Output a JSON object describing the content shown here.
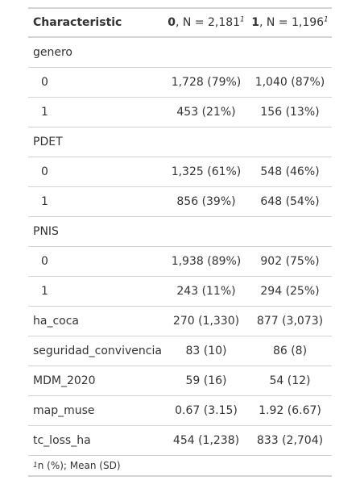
{
  "table": {
    "header": {
      "characteristic": "Characteristic",
      "col1_bold": "0",
      "col1_rest": ", N = 2,181",
      "col1_sup": "1",
      "col2_bold": "1",
      "col2_rest": ", N = 1,196",
      "col2_sup": "1"
    },
    "rows": [
      {
        "label": "genero",
        "v1": "",
        "v2": "",
        "indent": false
      },
      {
        "label": "0",
        "v1": "1,728 (79%)",
        "v2": "1,040 (87%)",
        "indent": true
      },
      {
        "label": "1",
        "v1": "453 (21%)",
        "v2": "156 (13%)",
        "indent": true
      },
      {
        "label": "PDET",
        "v1": "",
        "v2": "",
        "indent": false
      },
      {
        "label": "0",
        "v1": "1,325 (61%)",
        "v2": "548 (46%)",
        "indent": true
      },
      {
        "label": "1",
        "v1": "856 (39%)",
        "v2": "648 (54%)",
        "indent": true
      },
      {
        "label": "PNIS",
        "v1": "",
        "v2": "",
        "indent": false
      },
      {
        "label": "0",
        "v1": "1,938 (89%)",
        "v2": "902 (75%)",
        "indent": true
      },
      {
        "label": "1",
        "v1": "243 (11%)",
        "v2": "294 (25%)",
        "indent": true
      },
      {
        "label": "ha_coca",
        "v1": "270 (1,330)",
        "v2": "877 (3,073)",
        "indent": false
      },
      {
        "label": "seguridad_convivencia",
        "v1": "83 (10)",
        "v2": "86 (8)",
        "indent": false
      },
      {
        "label": "MDM_2020",
        "v1": "59 (16)",
        "v2": "54 (12)",
        "indent": false
      },
      {
        "label": "map_muse",
        "v1": "0.67 (3.15)",
        "v2": "1.92 (6.67)",
        "indent": false
      },
      {
        "label": "tc_loss_ha",
        "v1": "454 (1,238)",
        "v2": "833 (2,704)",
        "indent": false
      }
    ],
    "footnote_sup": "1",
    "footnote_text": " n (%); Mean (SD)"
  }
}
